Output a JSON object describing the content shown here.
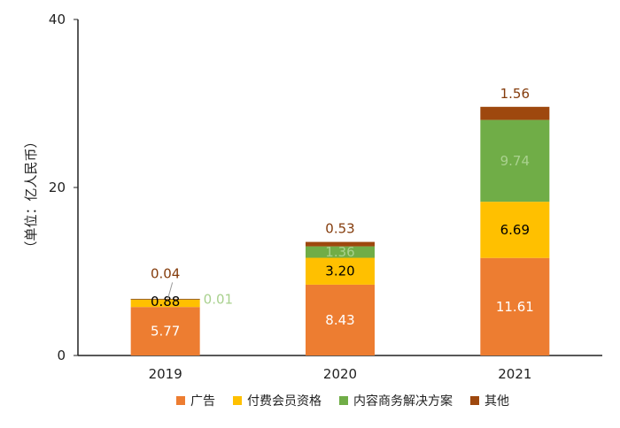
{
  "chart_data": {
    "type": "bar",
    "stacked": true,
    "title": "",
    "xlabel": "",
    "ylabel": "（单位：亿人民币）",
    "ylim": [
      0,
      40
    ],
    "yticks": [
      "0",
      "20",
      "40"
    ],
    "grid": false,
    "legend_position": "bottom",
    "categories": [
      "2019",
      "2020",
      "2021"
    ],
    "series": [
      {
        "name": "广告",
        "color": "#ED7D31",
        "values": [
          5.77,
          8.43,
          11.61
        ],
        "labels": [
          "5.77",
          "8.43",
          "11.61"
        ],
        "label_color": "#ffffff"
      },
      {
        "name": "付费会员资格",
        "color": "#FFC000",
        "values": [
          0.88,
          3.2,
          6.69
        ],
        "labels": [
          "0.88",
          "3.20",
          "6.69"
        ],
        "label_color": "#000000"
      },
      {
        "name": "内容商务解决方案",
        "color": "#70AD47",
        "values": [
          0.01,
          1.36,
          9.74
        ],
        "labels": [
          "0.01",
          "1.36",
          "9.74"
        ],
        "label_color": "#A9D18E"
      },
      {
        "name": "其他",
        "color": "#9E480E",
        "values": [
          0.04,
          0.53,
          1.56
        ],
        "labels": [
          "0.04",
          "0.53",
          "1.56"
        ],
        "label_color": "#843C0C"
      }
    ]
  }
}
